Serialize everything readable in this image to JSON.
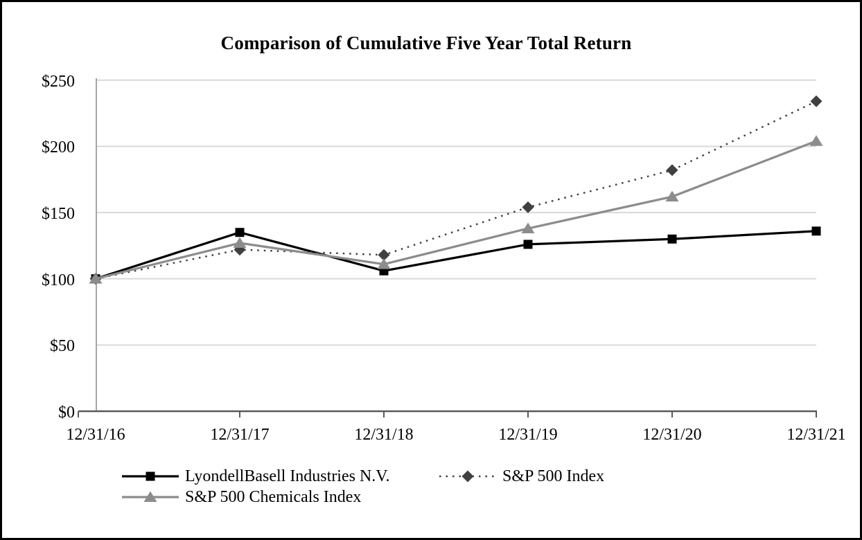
{
  "title": "Comparison of Cumulative Five Year Total Return",
  "chart_data": {
    "type": "line",
    "categories": [
      "12/31/16",
      "12/31/17",
      "12/31/18",
      "12/31/19",
      "12/31/20",
      "12/31/21"
    ],
    "series": [
      {
        "name": "LyondellBasell Industries N.V.",
        "values": [
          100,
          135,
          106,
          126,
          130,
          136
        ],
        "color": "#000000",
        "marker": "square",
        "line_style": "solid"
      },
      {
        "name": "S&P 500 Index",
        "values": [
          100,
          122,
          118,
          154,
          182,
          234
        ],
        "color": "#404040",
        "marker": "diamond",
        "line_style": "dotted"
      },
      {
        "name": "S&P 500 Chemicals Index",
        "values": [
          100,
          127,
          111,
          138,
          162,
          204
        ],
        "color": "#8c8c8c",
        "marker": "triangle",
        "line_style": "solid"
      }
    ],
    "y_ticks": [
      0,
      50,
      100,
      150,
      200,
      250
    ],
    "y_tick_labels": [
      "$0",
      "$50",
      "$100",
      "$150",
      "$200",
      "$250"
    ],
    "ylim": [
      0,
      250
    ],
    "currency_prefix": "$",
    "grid": "horizontal",
    "legend_position": "bottom-left"
  },
  "colors": {
    "background": "#ffffff",
    "gridline": "#d9d9d9",
    "x_axis": "#595959",
    "y_axis": "#a6a6a6",
    "text": "#000000"
  }
}
